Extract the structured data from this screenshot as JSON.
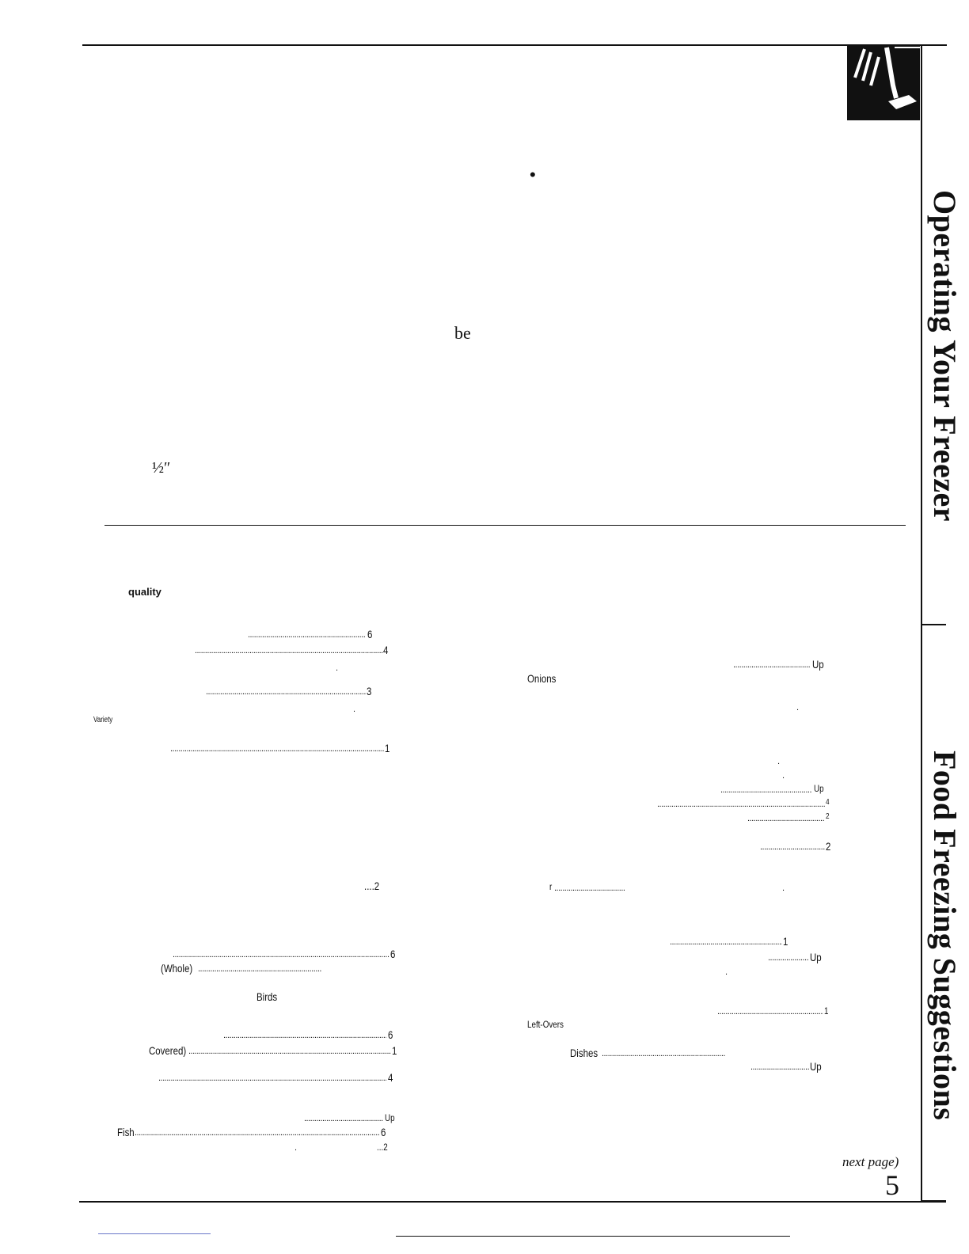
{
  "side_tabs": {
    "operating": "Operating Your Freezer",
    "food_freezing": "Food Freezing Suggestions"
  },
  "upper": {
    "bullet": "•",
    "be_text": "be",
    "half_inch": "½″"
  },
  "left_col": {
    "heading": "quality",
    "variety": "Variety",
    "whole": "(Whole)",
    "birds": "Birds",
    "covered": "Covered)",
    "fish": "Fish",
    "entries": [
      {
        "value": "6"
      },
      {
        "value": "4"
      },
      {
        "value": "3"
      },
      {
        "value": "1"
      },
      {
        "value": "....2"
      },
      {
        "value": "6"
      },
      {
        "value": "6"
      },
      {
        "value": "1"
      },
      {
        "value": "4"
      },
      {
        "value": "Up"
      },
      {
        "value": "6"
      },
      {
        "value": "...2"
      }
    ]
  },
  "right_col": {
    "onions": "Onions",
    "left_overs": "Left-Overs",
    "dishes": "Dishes",
    "r_char": "r",
    "entries": [
      {
        "value": "Up"
      },
      {
        "value": "Up"
      },
      {
        "value": "4"
      },
      {
        "value": "2"
      },
      {
        "value": "2"
      },
      {
        "value": "1"
      },
      {
        "value": "Up"
      },
      {
        "value": "1"
      },
      {
        "value": "Up"
      }
    ]
  },
  "footer": {
    "continued": "next page)",
    "page_number": "5"
  },
  "icon": "hand-pressing-button-icon"
}
